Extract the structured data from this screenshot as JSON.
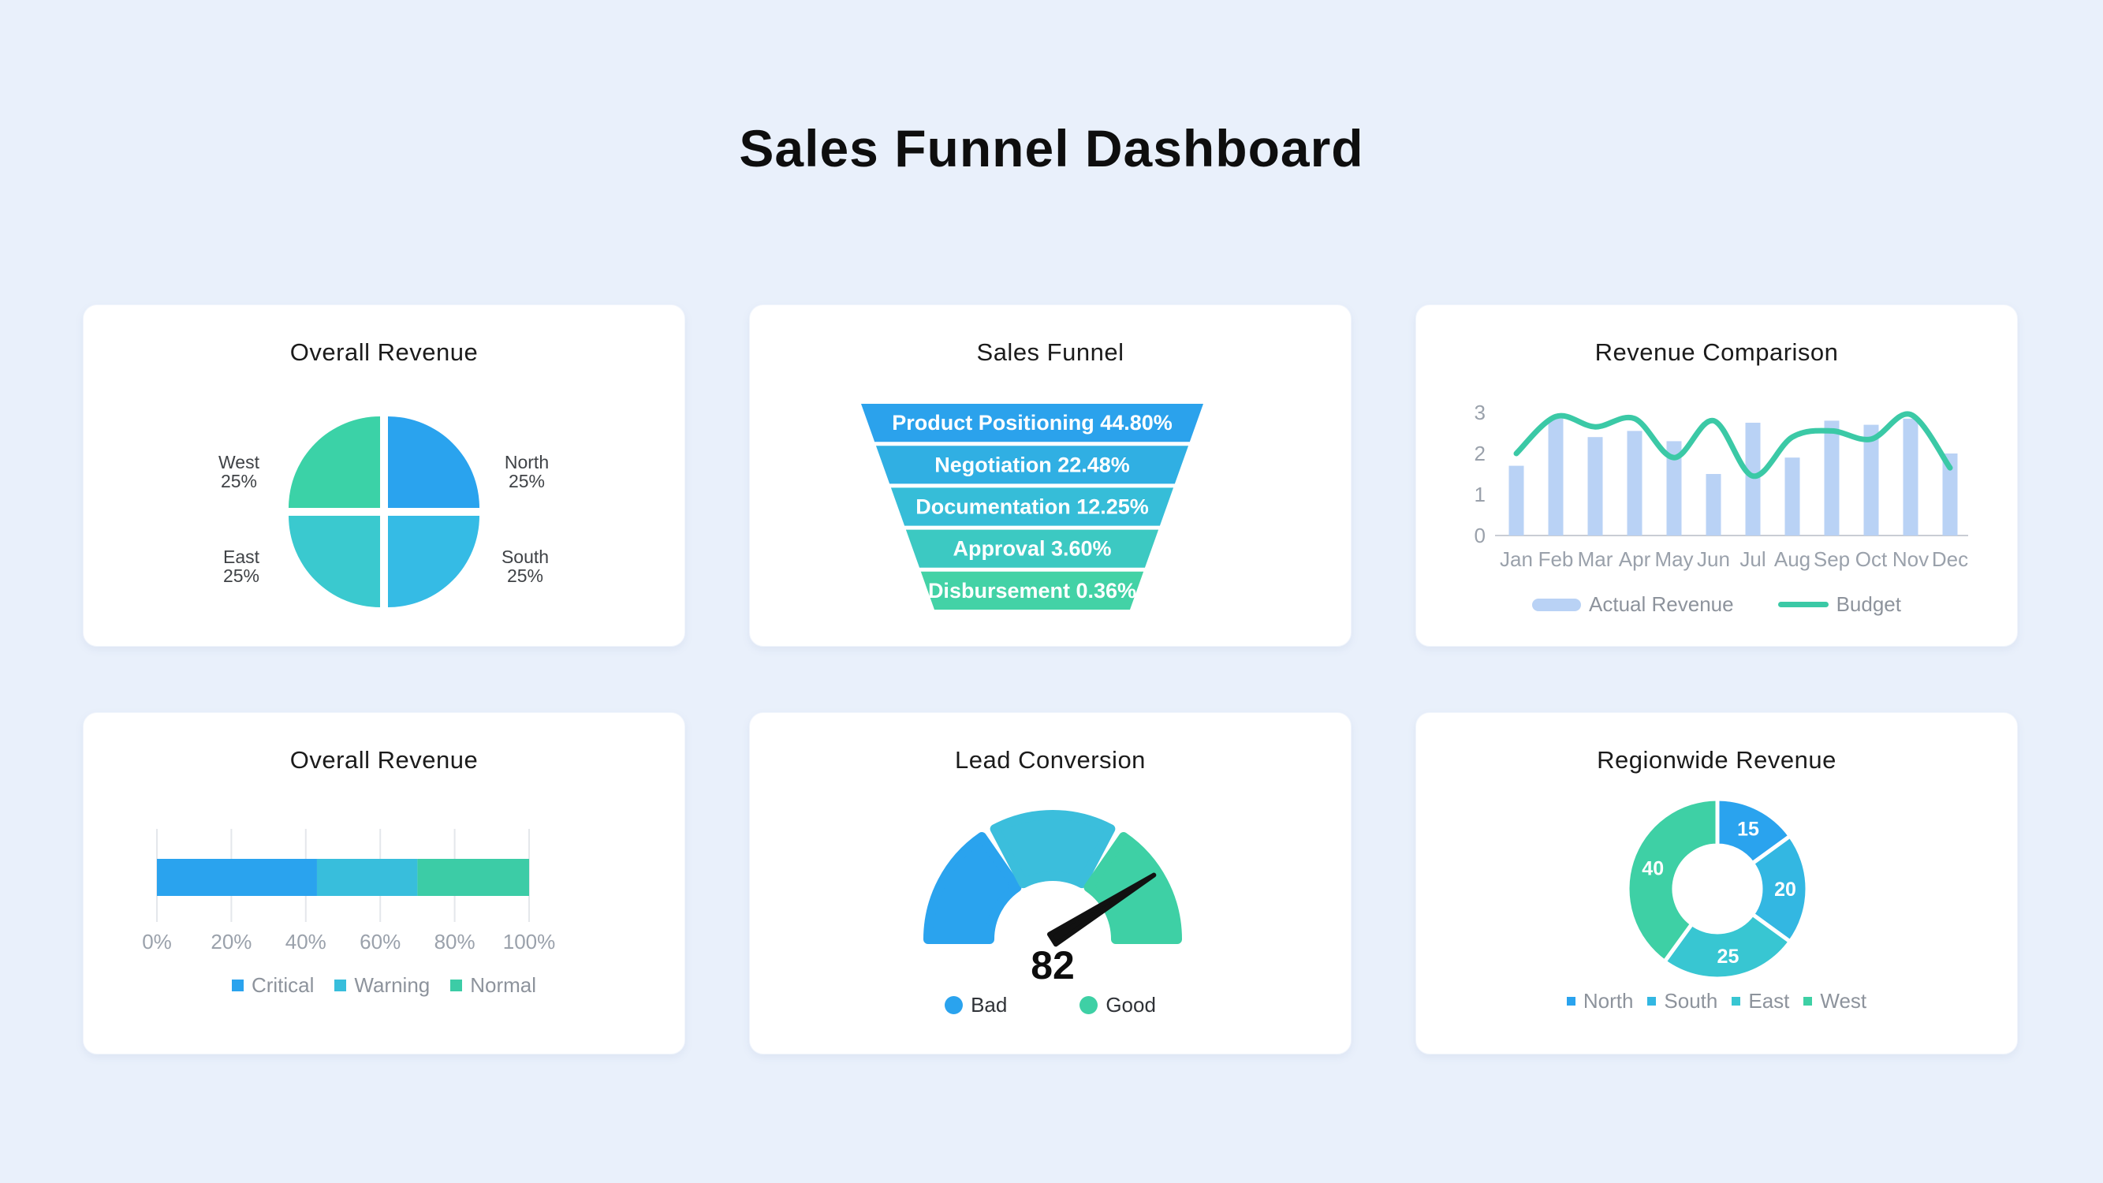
{
  "page": {
    "title": "Sales Funnel Dashboard"
  },
  "theme": {
    "background": "#E9F0FB",
    "card": "#FFFFFF",
    "axis": "#C9CDD4",
    "gridline": "#E4E7EB",
    "tick_text": "#9AA1AB",
    "legend_text": "#8D939C",
    "label_text": "#3F4246"
  },
  "cards": [
    {
      "title": "Overall Revenue"
    },
    {
      "title": "Sales Funnel"
    },
    {
      "title": "Revenue Comparison"
    },
    {
      "title": "Overall Revenue"
    },
    {
      "title": "Lead Conversion"
    },
    {
      "title": "Regionwide Revenue"
    }
  ],
  "chart_data": [
    {
      "type": "pie",
      "title": "Overall Revenue",
      "slices": [
        {
          "label": "North",
          "value": 25,
          "display": "25%",
          "color": "#2AA3EE"
        },
        {
          "label": "South",
          "value": 25,
          "display": "25%",
          "color": "#35BBE5"
        },
        {
          "label": "East",
          "value": 25,
          "display": "25%",
          "color": "#3AC9CF"
        },
        {
          "label": "West",
          "value": 25,
          "display": "25%",
          "color": "#3BD2A7"
        }
      ]
    },
    {
      "type": "funnel",
      "title": "Sales Funnel",
      "stages": [
        {
          "label": "Product Positioning",
          "display": "44.80%",
          "value": 44.8,
          "color": "#2BA2EC"
        },
        {
          "label": "Negotiation",
          "display": "22.48%",
          "value": 22.48,
          "color": "#30AFE3"
        },
        {
          "label": "Documentation",
          "display": "12.25%",
          "value": 12.25,
          "color": "#36BDD8"
        },
        {
          "label": "Approval",
          "display": "3.60%",
          "value": 3.6,
          "color": "#3CC9C2"
        },
        {
          "label": "Disbursement",
          "display": "0.36%",
          "value": 0.36,
          "color": "#43D2A6"
        }
      ]
    },
    {
      "type": "bar_line",
      "title": "Revenue Comparison",
      "categories": [
        "Jan",
        "Feb",
        "Mar",
        "Apr",
        "May",
        "Jun",
        "Jul",
        "Aug",
        "Sep",
        "Oct",
        "Nov",
        "Dec"
      ],
      "series": [
        {
          "name": "Actual Revenue",
          "kind": "bar",
          "color": "#B9D2F5",
          "values": [
            1.7,
            2.85,
            2.4,
            2.55,
            2.3,
            1.5,
            2.75,
            1.9,
            2.8,
            2.7,
            2.85,
            2.0
          ]
        },
        {
          "name": "Budget",
          "kind": "line",
          "color": "#3BC9A6",
          "values": [
            2.0,
            2.9,
            2.65,
            2.85,
            1.9,
            2.8,
            1.45,
            2.4,
            2.55,
            2.35,
            2.95,
            1.65
          ]
        }
      ],
      "ylim": [
        0,
        3
      ],
      "yticks": [
        0,
        1,
        2,
        3
      ],
      "grid": false,
      "legend_position": "bottom"
    },
    {
      "type": "stacked_bar",
      "title": "Overall Revenue",
      "segments": [
        {
          "label": "Critical",
          "value": 43,
          "color": "#2AA3EE"
        },
        {
          "label": "Warning",
          "value": 27,
          "color": "#38BEDC"
        },
        {
          "label": "Normal",
          "value": 30,
          "color": "#3CCCA6"
        }
      ],
      "xlim": [
        0,
        100
      ],
      "xticks": [
        "0%",
        "20%",
        "40%",
        "60%",
        "80%",
        "100%"
      ],
      "legend_position": "bottom"
    },
    {
      "type": "gauge",
      "title": "Lead Conversion",
      "value": 82,
      "min": 0,
      "max": 100,
      "segment_colors": [
        "#2AA3EE",
        "#3BBEDC",
        "#3ED0A5"
      ],
      "needle_color": "#111111",
      "legend": [
        {
          "label": "Bad",
          "color": "#2AA3EE"
        },
        {
          "label": "Good",
          "color": "#3ED0A5"
        }
      ]
    },
    {
      "type": "donut",
      "title": "Regionwide Revenue",
      "slices": [
        {
          "label": "North",
          "value": 15,
          "color": "#2AA3EE"
        },
        {
          "label": "South",
          "value": 20,
          "color": "#33B7E2"
        },
        {
          "label": "East",
          "value": 25,
          "color": "#38C6D2"
        },
        {
          "label": "West",
          "value": 40,
          "color": "#3ED0A5"
        }
      ],
      "legend_position": "bottom"
    }
  ]
}
